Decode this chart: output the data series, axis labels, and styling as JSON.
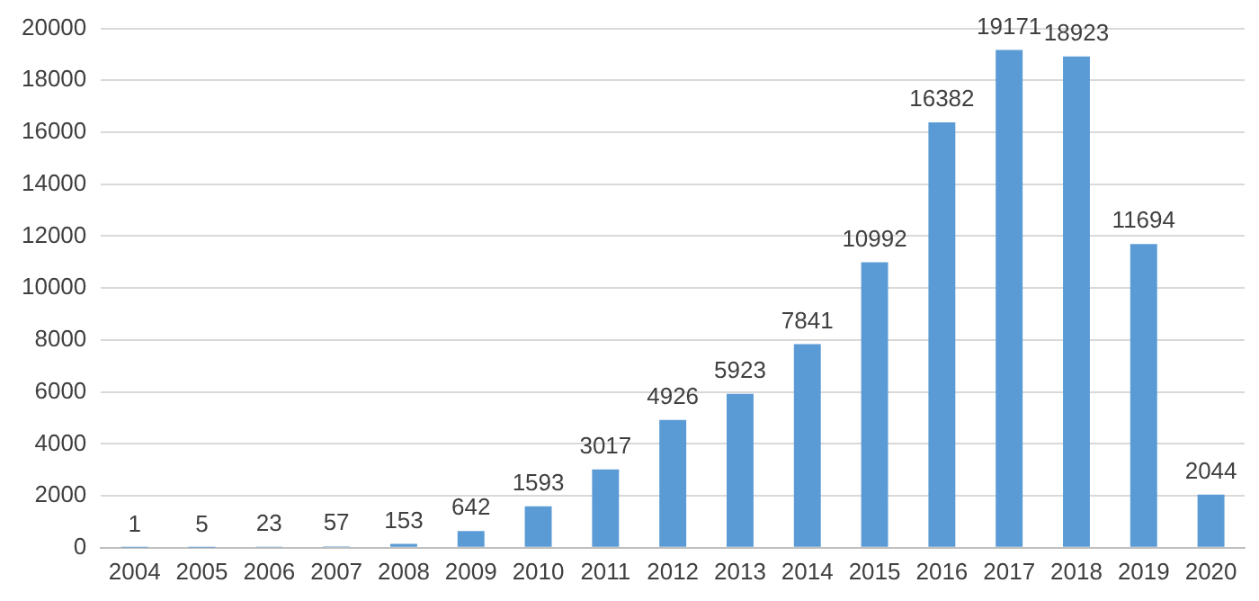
{
  "chart_data": {
    "type": "bar",
    "categories": [
      "2004",
      "2005",
      "2006",
      "2007",
      "2008",
      "2009",
      "2010",
      "2011",
      "2012",
      "2013",
      "2014",
      "2015",
      "2016",
      "2017",
      "2018",
      "2019",
      "2020"
    ],
    "values": [
      1,
      5,
      23,
      57,
      153,
      642,
      1593,
      3017,
      4926,
      5923,
      7841,
      10992,
      16382,
      19171,
      18923,
      11694,
      2044
    ],
    "color": "#5b9bd5",
    "ylim": [
      0,
      20000
    ],
    "yticks": [
      0,
      2000,
      4000,
      6000,
      8000,
      10000,
      12000,
      14000,
      16000,
      18000,
      20000
    ],
    "grid": "y",
    "data_labels": true,
    "legend": false
  }
}
